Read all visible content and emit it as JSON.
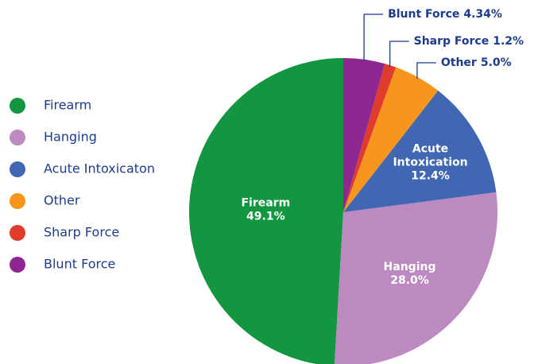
{
  "chart_data": {
    "type": "pie",
    "categories": [
      "Firearm",
      "Hanging",
      "Acute Intoxicaton",
      "Other",
      "Sharp Force",
      "Blunt Force"
    ],
    "values": [
      49.1,
      28.0,
      12.4,
      5.0,
      1.2,
      4.34
    ],
    "value_labels": [
      "49.1%",
      "28.0%",
      "12.4%",
      "5.0%",
      "1.2%",
      "4.34%"
    ],
    "slice_label_lines": [
      [
        "Firearm"
      ],
      [
        "Hanging"
      ],
      [
        "Acute",
        "Intoxication"
      ],
      [
        "Other"
      ],
      [
        "Sharp Force"
      ],
      [
        "Blunt Force"
      ]
    ],
    "colors": [
      "#12963f",
      "#bc8ac0",
      "#4267b2",
      "#f7961d",
      "#e03b2c",
      "#8e278f"
    ],
    "legend": "left"
  }
}
